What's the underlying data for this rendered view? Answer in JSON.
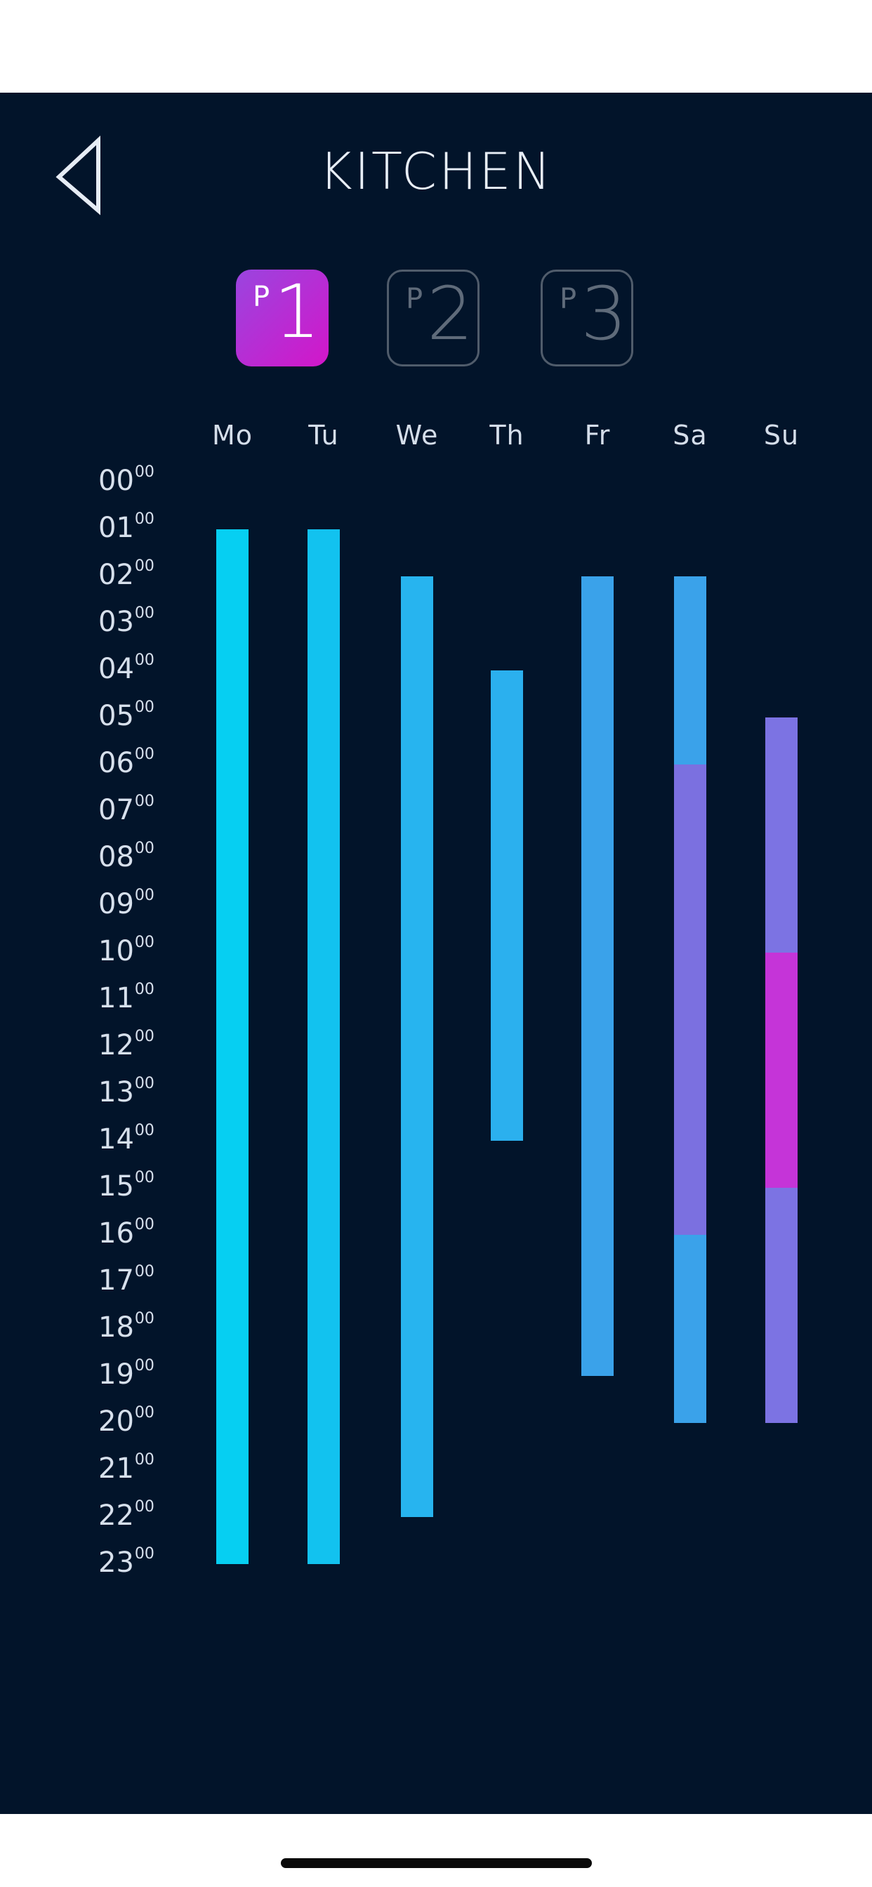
{
  "header": {
    "title": "KITCHEN"
  },
  "programs": [
    {
      "prefix": "P",
      "number": "1",
      "active": true
    },
    {
      "prefix": "P",
      "number": "2",
      "active": false
    },
    {
      "prefix": "P",
      "number": "3",
      "active": false
    }
  ],
  "days": [
    "Mo",
    "Tu",
    "We",
    "Th",
    "Fr",
    "Sa",
    "Su"
  ],
  "hours": [
    {
      "h": "00",
      "m": "00"
    },
    {
      "h": "01",
      "m": "00"
    },
    {
      "h": "02",
      "m": "00"
    },
    {
      "h": "03",
      "m": "00"
    },
    {
      "h": "04",
      "m": "00"
    },
    {
      "h": "05",
      "m": "00"
    },
    {
      "h": "06",
      "m": "00"
    },
    {
      "h": "07",
      "m": "00"
    },
    {
      "h": "08",
      "m": "00"
    },
    {
      "h": "09",
      "m": "00"
    },
    {
      "h": "10",
      "m": "00"
    },
    {
      "h": "11",
      "m": "00"
    },
    {
      "h": "12",
      "m": "00"
    },
    {
      "h": "13",
      "m": "00"
    },
    {
      "h": "14",
      "m": "00"
    },
    {
      "h": "15",
      "m": "00"
    },
    {
      "h": "16",
      "m": "00"
    },
    {
      "h": "17",
      "m": "00"
    },
    {
      "h": "18",
      "m": "00"
    },
    {
      "h": "19",
      "m": "00"
    },
    {
      "h": "20",
      "m": "00"
    },
    {
      "h": "21",
      "m": "00"
    },
    {
      "h": "22",
      "m": "00"
    },
    {
      "h": "23",
      "m": "00"
    }
  ],
  "schedule": [
    {
      "day": "Mo",
      "segments": [
        {
          "start": 0.5,
          "end": 22.5,
          "color": "#06cff2"
        }
      ]
    },
    {
      "day": "Tu",
      "segments": [
        {
          "start": 0.5,
          "end": 22.5,
          "color": "#12c2ef"
        }
      ]
    },
    {
      "day": "We",
      "segments": [
        {
          "start": 1.5,
          "end": 21.5,
          "color": "#27b4ef"
        }
      ]
    },
    {
      "day": "Th",
      "segments": [
        {
          "start": 3.5,
          "end": 13.5,
          "color": "#2bb0ee"
        }
      ]
    },
    {
      "day": "Fr",
      "segments": [
        {
          "start": 1.5,
          "end": 18.5,
          "color": "#3aa2ea"
        }
      ]
    },
    {
      "day": "Sa",
      "segments": [
        {
          "start": 1.5,
          "end": 5.5,
          "color": "#3aa2ea"
        },
        {
          "start": 5.5,
          "end": 15.5,
          "color": "#7b70e0"
        },
        {
          "start": 15.5,
          "end": 19.5,
          "color": "#3aa2ea"
        }
      ]
    },
    {
      "day": "Su",
      "segments": [
        {
          "start": 4.5,
          "end": 9.5,
          "color": "#7c73e3"
        },
        {
          "start": 9.5,
          "end": 14.5,
          "color": "#c534d8"
        },
        {
          "start": 14.5,
          "end": 19.5,
          "color": "#7c73e3"
        }
      ]
    }
  ]
}
